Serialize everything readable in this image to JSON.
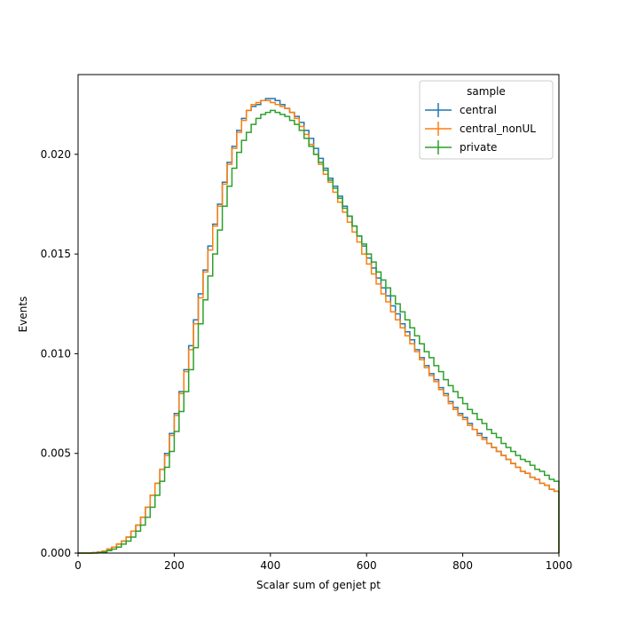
{
  "chart_data": {
    "type": "line",
    "style": "step-histogram",
    "title": "",
    "xlabel": "Scalar sum of genjet pt",
    "ylabel": "Events",
    "xlim": [
      0,
      1000
    ],
    "ylim": [
      0,
      0.024
    ],
    "xticks": [
      0,
      200,
      400,
      600,
      800,
      1000
    ],
    "xtick_labels": [
      "0",
      "200",
      "400",
      "600",
      "800",
      "1000"
    ],
    "yticks": [
      0,
      0.005,
      0.01,
      0.015,
      0.02
    ],
    "ytick_labels": [
      "0.000",
      "0.005",
      "0.010",
      "0.015",
      "0.020"
    ],
    "grid": false,
    "legend": {
      "title": "sample",
      "position": "top-right"
    },
    "bin_width": 10,
    "bin_edges_start": 0,
    "series": [
      {
        "name": "central",
        "color": "#1f77b4",
        "values": [
          0,
          0,
          0,
          2e-05,
          5e-05,
          0.0001,
          0.0002,
          0.0003,
          0.00045,
          0.0006,
          0.0008,
          0.0011,
          0.0014,
          0.0018,
          0.0023,
          0.0029,
          0.0035,
          0.0042,
          0.005,
          0.006,
          0.007,
          0.0081,
          0.0092,
          0.0104,
          0.0117,
          0.013,
          0.0142,
          0.0154,
          0.0165,
          0.0175,
          0.0186,
          0.0196,
          0.0204,
          0.0212,
          0.0218,
          0.0222,
          0.0224,
          0.0225,
          0.0227,
          0.0228,
          0.0228,
          0.0227,
          0.0225,
          0.0223,
          0.0221,
          0.0219,
          0.0216,
          0.0212,
          0.0208,
          0.0203,
          0.0198,
          0.0193,
          0.0188,
          0.0184,
          0.0179,
          0.0174,
          0.0169,
          0.0164,
          0.0159,
          0.0154,
          0.0148,
          0.0143,
          0.0138,
          0.0133,
          0.0129,
          0.0124,
          0.012,
          0.0115,
          0.0111,
          0.0107,
          0.0102,
          0.0098,
          0.0094,
          0.009,
          0.0087,
          0.0083,
          0.008,
          0.0076,
          0.0073,
          0.007,
          0.0068,
          0.0065,
          0.0062,
          0.006,
          0.0058,
          0.0055,
          0.0053,
          0.0051,
          0.0049,
          0.0047,
          0.0045,
          0.0043,
          0.0041,
          0.004,
          0.0038,
          0.0037,
          0.0035,
          0.0034,
          0.0032,
          0.0031
        ]
      },
      {
        "name": "central_nonUL",
        "color": "#ff7f0e",
        "values": [
          0,
          0,
          0,
          2e-05,
          5e-05,
          0.0001,
          0.0002,
          0.0003,
          0.00045,
          0.0006,
          0.0008,
          0.0011,
          0.0014,
          0.0018,
          0.0023,
          0.0029,
          0.0035,
          0.0042,
          0.0049,
          0.0059,
          0.0069,
          0.008,
          0.0091,
          0.0102,
          0.0115,
          0.0128,
          0.0141,
          0.0152,
          0.0164,
          0.0174,
          0.0185,
          0.0195,
          0.0203,
          0.0211,
          0.0217,
          0.0222,
          0.0225,
          0.0226,
          0.0227,
          0.0227,
          0.0226,
          0.0225,
          0.0224,
          0.0223,
          0.0221,
          0.0218,
          0.0214,
          0.021,
          0.0205,
          0.02,
          0.0195,
          0.019,
          0.0186,
          0.0181,
          0.0176,
          0.0171,
          0.0166,
          0.0161,
          0.0156,
          0.015,
          0.0145,
          0.014,
          0.0135,
          0.013,
          0.0126,
          0.0121,
          0.0117,
          0.0113,
          0.0109,
          0.0105,
          0.0101,
          0.0097,
          0.0093,
          0.0089,
          0.0086,
          0.0082,
          0.0079,
          0.0075,
          0.0072,
          0.0069,
          0.0067,
          0.0064,
          0.0062,
          0.0059,
          0.0057,
          0.0055,
          0.0053,
          0.0051,
          0.0049,
          0.0047,
          0.0045,
          0.0043,
          0.0041,
          0.004,
          0.0038,
          0.0037,
          0.0035,
          0.0034,
          0.0032,
          0.0031
        ]
      },
      {
        "name": "private",
        "color": "#2ca02c",
        "values": [
          0,
          0,
          0,
          0,
          2e-05,
          5e-05,
          0.00012,
          0.0002,
          0.0003,
          0.00045,
          0.0006,
          0.0008,
          0.0011,
          0.0014,
          0.0018,
          0.0023,
          0.0029,
          0.0036,
          0.0043,
          0.0051,
          0.0061,
          0.0071,
          0.0081,
          0.0092,
          0.0103,
          0.0115,
          0.0127,
          0.0139,
          0.015,
          0.0162,
          0.0174,
          0.0184,
          0.0193,
          0.0201,
          0.0207,
          0.0211,
          0.0215,
          0.0218,
          0.022,
          0.0221,
          0.0222,
          0.0221,
          0.022,
          0.0219,
          0.0217,
          0.0215,
          0.0212,
          0.0208,
          0.0204,
          0.02,
          0.0196,
          0.0192,
          0.0187,
          0.0183,
          0.0178,
          0.0173,
          0.0169,
          0.0164,
          0.0159,
          0.0155,
          0.015,
          0.0146,
          0.0141,
          0.0137,
          0.0133,
          0.0129,
          0.0125,
          0.0121,
          0.0117,
          0.0113,
          0.0109,
          0.0105,
          0.0101,
          0.0098,
          0.0094,
          0.0091,
          0.0087,
          0.0084,
          0.0081,
          0.0078,
          0.0075,
          0.0072,
          0.007,
          0.0067,
          0.0065,
          0.0062,
          0.006,
          0.0058,
          0.0055,
          0.0053,
          0.0051,
          0.0049,
          0.0047,
          0.0046,
          0.0044,
          0.0042,
          0.0041,
          0.0039,
          0.0037,
          0.0036
        ]
      }
    ]
  }
}
